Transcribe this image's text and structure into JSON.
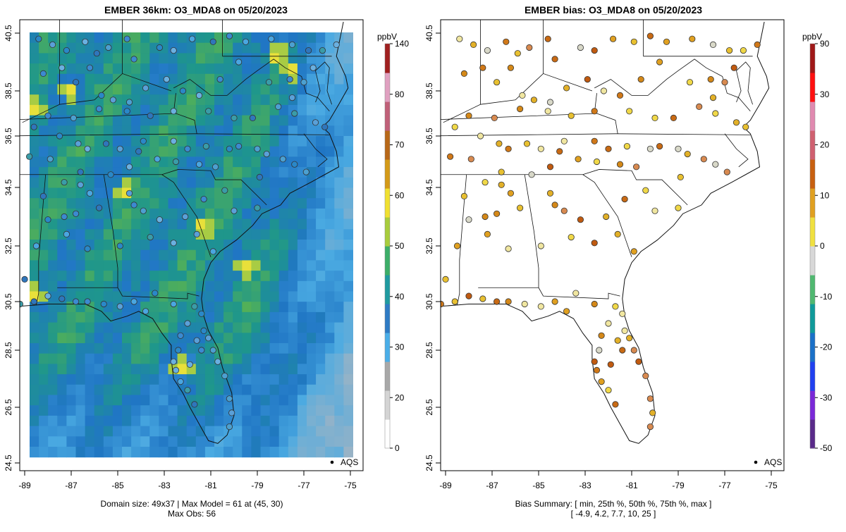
{
  "left_panel": {
    "title": "EMBER 36km: O3_MDA8 on 05/20/2023",
    "footer_line1": "Domain size: 49x37 | Max Model = 61 at (45, 30)",
    "footer_line2": "Max Obs: 56",
    "legend_label": "AQS",
    "colorbar": {
      "unit": "ppbV",
      "ticks": [
        "140",
        "80",
        "70",
        "60",
        "50",
        "40",
        "30",
        "20",
        "0"
      ],
      "colors": [
        "#ffffff",
        "#d4d4d4",
        "#a8a8a8",
        "#4aaee8",
        "#2e7bc4",
        "#1f9aa0",
        "#3cae68",
        "#a8cc3c",
        "#f0e030",
        "#d49a18",
        "#b86818",
        "#c06078",
        "#e0a0c0",
        "#a02020"
      ]
    }
  },
  "right_panel": {
    "title": "EMBER bias: O3_MDA8 on 05/20/2023",
    "footer_line1": "Bias Summary: [ min, 25th %, 50th %, 75th %, max ]",
    "footer_line2": "[ -4.9,   4.2,   7.7,   10,   25 ]",
    "legend_label": "AQS",
    "colorbar": {
      "unit": "ppbV",
      "ticks": [
        "90",
        "30",
        "20",
        "10",
        "0",
        "-10",
        "-20",
        "-30",
        "-50"
      ],
      "colors": [
        "#5a2a8a",
        "#7a28d8",
        "#2040f0",
        "#1a70c8",
        "#109a9a",
        "#50b870",
        "#d8d8d8",
        "#f0e040",
        "#e0a020",
        "#c86010",
        "#d06070",
        "#e08ab0",
        "#ff1010",
        "#a01818"
      ]
    }
  },
  "axes": {
    "x_ticks": [
      "-89",
      "-87",
      "-85",
      "-83",
      "-81",
      "-79",
      "-77",
      "-75"
    ],
    "y_ticks": [
      "24.5",
      "26.5",
      "28.5",
      "30.5",
      "32.5",
      "34.5",
      "36.5",
      "38.5",
      "40.5"
    ]
  }
}
